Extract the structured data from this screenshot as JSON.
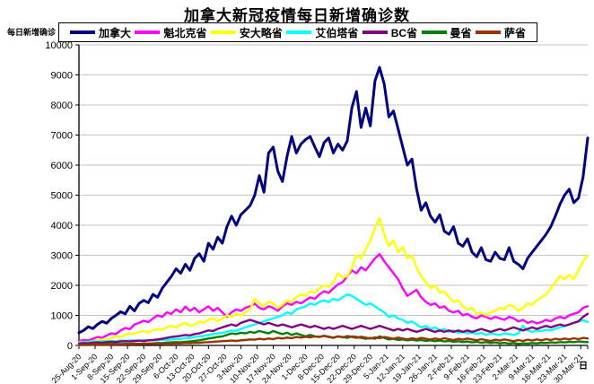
{
  "chart_data": {
    "type": "line",
    "title": "加拿大新冠疫情每日新增确诊数",
    "ylabel": "每日新增确诊",
    "xlabel": "日",
    "ylim": [
      0,
      10000
    ],
    "y_tick_interval": 1000,
    "grid": true,
    "legend_position": "top",
    "days_per_tick": 7,
    "x_step_days": 2,
    "total_days": 220,
    "x_tick_labels": [
      "25-Aug-20",
      "1-Sep-20",
      "8-Sep-20",
      "15-Sep-20",
      "22-Sep-20",
      "29-Sep-20",
      "6-Oct-20",
      "13-Oct-20",
      "20-Oct-20",
      "27-Oct-20",
      "3-Nov-20",
      "10-Nov-20",
      "17-Nov-20",
      "24-Nov-20",
      "1-Dec-20",
      "8-Dec-20",
      "15-Dec-20",
      "22-Dec-20",
      "29-Dec-20",
      "5-Jan-21",
      "12-Jan-21",
      "19-Jan-21",
      "26-Jan-21",
      "2-Feb-21",
      "9-Feb-21",
      "16-Feb-21",
      "23-Feb-21",
      "2-Mar-21",
      "9-Mar-21",
      "16-Mar-21",
      "23-Mar-21",
      "30-Mar-21"
    ],
    "series": [
      {
        "name": "加拿大",
        "color": "#000080",
        "values": [
          420,
          500,
          620,
          560,
          700,
          800,
          740,
          900,
          1000,
          1120,
          1050,
          1300,
          1150,
          1400,
          1500,
          1420,
          1700,
          1600,
          1900,
          2100,
          2300,
          2550,
          2400,
          2700,
          2500,
          2900,
          3050,
          2800,
          3400,
          3200,
          3600,
          3400,
          3950,
          4300,
          4000,
          4350,
          4500,
          4650,
          5000,
          5650,
          5100,
          6400,
          6600,
          5800,
          5450,
          6300,
          6950,
          6400,
          6700,
          6850,
          6950,
          6600,
          6280,
          6750,
          6900,
          6400,
          6700,
          6500,
          6800,
          7900,
          8450,
          7250,
          7900,
          7300,
          8800,
          9250,
          8700,
          7600,
          7800,
          7200,
          6600,
          6000,
          6200,
          5200,
          4500,
          4750,
          4300,
          4100,
          4350,
          3800,
          3700,
          3950,
          3400,
          3300,
          3550,
          3100,
          2950,
          3250,
          2850,
          2800,
          3100,
          2900,
          2850,
          3250,
          2800,
          2700,
          2550,
          2900,
          3100,
          3300,
          3500,
          3700,
          3950,
          4300,
          4700,
          5000,
          5200,
          4750,
          4900,
          5600,
          6900
        ]
      },
      {
        "name": "魁北克省",
        "color": "#FF00FF",
        "values": [
          140,
          180,
          160,
          220,
          280,
          250,
          330,
          400,
          380,
          500,
          580,
          540,
          700,
          750,
          820,
          780,
          900,
          1000,
          950,
          1100,
          1050,
          1200,
          1100,
          1290,
          1150,
          1250,
          1100,
          1200,
          1300,
          1150,
          1250,
          1100,
          950,
          1100,
          1200,
          1150,
          1250,
          1300,
          1390,
          1250,
          1200,
          1300,
          1250,
          1150,
          1300,
          1400,
          1350,
          1450,
          1400,
          1500,
          1600,
          1550,
          1700,
          1800,
          1750,
          1900,
          2030,
          2100,
          2300,
          2500,
          2400,
          2600,
          2500,
          2700,
          2900,
          3040,
          2800,
          2600,
          2400,
          2200,
          1900,
          1650,
          1750,
          1850,
          1600,
          1450,
          1350,
          1400,
          1250,
          1300,
          1150,
          1100,
          1150,
          1000,
          1050,
          950,
          900,
          1000,
          950,
          880,
          950,
          900,
          850,
          950,
          900,
          800,
          850,
          750,
          800,
          730,
          780,
          850,
          800,
          900,
          950,
          900,
          1000,
          1050,
          1100,
          1250,
          1300
        ]
      },
      {
        "name": "安大略省",
        "color": "#FFFF00",
        "values": [
          100,
          120,
          110,
          150,
          170,
          200,
          180,
          250,
          300,
          280,
          350,
          400,
          380,
          450,
          480,
          430,
          500,
          550,
          520,
          600,
          650,
          600,
          700,
          750,
          650,
          700,
          800,
          750,
          850,
          900,
          800,
          900,
          1000,
          950,
          1050,
          1000,
          1100,
          1200,
          1550,
          1400,
          1300,
          1450,
          1400,
          1250,
          1350,
          1500,
          1450,
          1600,
          1700,
          1650,
          1800,
          1750,
          1900,
          2000,
          1950,
          2100,
          2400,
          2250,
          2300,
          2600,
          3000,
          2900,
          3200,
          3500,
          3900,
          4240,
          3700,
          3300,
          3500,
          3100,
          3280,
          2900,
          3000,
          2600,
          2300,
          2100,
          1900,
          2000,
          1750,
          1800,
          1600,
          1450,
          1500,
          1300,
          1200,
          1250,
          1050,
          1100,
          1000,
          1100,
          1150,
          1250,
          1200,
          1350,
          1300,
          1150,
          1250,
          1400,
          1350,
          1500,
          1600,
          1700,
          1900,
          2100,
          2300,
          2200,
          2350,
          2200,
          2500,
          2800,
          3000
        ]
      },
      {
        "name": "艾伯塔省",
        "color": "#00FFFF",
        "values": [
          90,
          110,
          100,
          130,
          120,
          140,
          130,
          150,
          140,
          160,
          150,
          170,
          160,
          150,
          170,
          160,
          180,
          170,
          190,
          180,
          200,
          220,
          210,
          250,
          240,
          280,
          300,
          320,
          350,
          380,
          400,
          420,
          450,
          500,
          480,
          550,
          600,
          650,
          700,
          750,
          800,
          850,
          900,
          950,
          1000,
          1100,
          1050,
          1200,
          1250,
          1300,
          1400,
          1350,
          1450,
          1500,
          1440,
          1550,
          1500,
          1600,
          1700,
          1650,
          1550,
          1450,
          1350,
          1400,
          1300,
          1190,
          1100,
          950,
          1000,
          900,
          850,
          750,
          800,
          700,
          600,
          650,
          550,
          600,
          500,
          550,
          450,
          500,
          420,
          450,
          400,
          430,
          380,
          420,
          350,
          400,
          370,
          350,
          400,
          380,
          350,
          400,
          650,
          500,
          450,
          500,
          480,
          520,
          500,
          550,
          600,
          650,
          700,
          750,
          800,
          840,
          780
        ]
      },
      {
        "name": "BC省",
        "color": "#800080",
        "values": [
          60,
          80,
          70,
          90,
          100,
          90,
          110,
          120,
          110,
          130,
          140,
          130,
          150,
          160,
          150,
          170,
          180,
          200,
          220,
          250,
          280,
          300,
          320,
          350,
          330,
          380,
          400,
          450,
          500,
          480,
          550,
          600,
          650,
          700,
          650,
          750,
          800,
          850,
          800,
          750,
          700,
          750,
          700,
          650,
          700,
          650,
          600,
          650,
          700,
          650,
          600,
          650,
          600,
          550,
          600,
          550,
          600,
          650,
          600,
          550,
          600,
          650,
          600,
          550,
          600,
          650,
          600,
          550,
          500,
          550,
          500,
          550,
          500,
          450,
          500,
          550,
          500,
          450,
          500,
          450,
          500,
          450,
          500,
          450,
          500,
          450,
          500,
          550,
          500,
          450,
          500,
          550,
          500,
          550,
          600,
          550,
          500,
          550,
          600,
          550,
          600,
          650,
          600,
          650,
          700,
          650,
          700,
          750,
          800,
          950,
          1050
        ]
      },
      {
        "name": "曼省",
        "color": "#008000",
        "values": [
          25,
          30,
          35,
          30,
          40,
          35,
          45,
          40,
          50,
          45,
          55,
          50,
          60,
          55,
          65,
          60,
          70,
          80,
          75,
          90,
          100,
          110,
          100,
          120,
          130,
          150,
          170,
          200,
          230,
          250,
          280,
          300,
          350,
          400,
          380,
          420,
          400,
          450,
          420,
          480,
          440,
          400,
          480,
          420,
          380,
          420,
          350,
          400,
          350,
          300,
          350,
          300,
          280,
          320,
          280,
          250,
          300,
          280,
          250,
          300,
          280,
          250,
          220,
          250,
          220,
          300,
          250,
          200,
          220,
          180,
          200,
          170,
          190,
          160,
          180,
          150,
          170,
          140,
          160,
          130,
          150,
          120,
          140,
          110,
          130,
          100,
          120,
          90,
          110,
          80,
          100,
          70,
          90,
          60,
          80,
          50,
          70,
          60,
          80,
          70,
          90,
          80,
          100,
          90,
          110,
          100,
          120,
          110,
          130,
          120,
          110
        ]
      },
      {
        "name": "萨省",
        "color": "#993300",
        "values": [
          15,
          20,
          18,
          25,
          22,
          30,
          25,
          35,
          30,
          40,
          35,
          45,
          40,
          50,
          45,
          55,
          50,
          60,
          55,
          65,
          60,
          70,
          65,
          80,
          75,
          90,
          85,
          100,
          110,
          120,
          130,
          140,
          150,
          160,
          150,
          170,
          180,
          200,
          190,
          220,
          200,
          230,
          210,
          250,
          230,
          260,
          240,
          280,
          260,
          290,
          270,
          300,
          280,
          320,
          290,
          260,
          300,
          270,
          310,
          280,
          250,
          290,
          260,
          230,
          270,
          240,
          280,
          250,
          220,
          260,
          230,
          200,
          240,
          210,
          250,
          220,
          190,
          230,
          200,
          240,
          210,
          180,
          220,
          190,
          230,
          200,
          170,
          210,
          180,
          150,
          190,
          160,
          200,
          170,
          140,
          180,
          150,
          190,
          160,
          200,
          170,
          210,
          180,
          220,
          190,
          230,
          200,
          240,
          210,
          250,
          230
        ]
      }
    ]
  }
}
